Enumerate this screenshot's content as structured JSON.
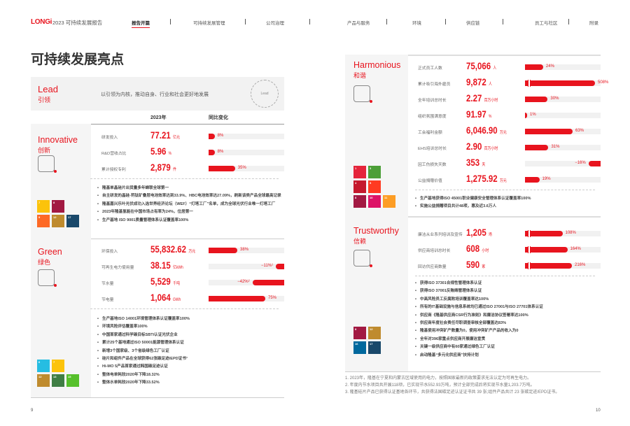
{
  "header": {
    "logo": "LONGi",
    "report_title": "2023 可持续发展报告",
    "nav": [
      {
        "label": "报告开篇",
        "active": true
      },
      {
        "label": "可持续发展管理"
      },
      {
        "label": "公司治理"
      },
      {
        "label": "产品与服务"
      },
      {
        "label": "环境"
      },
      {
        "label": "供应链"
      },
      {
        "label": "员工与社区"
      },
      {
        "label": "附录"
      }
    ]
  },
  "page_title": "可持续发展亮点",
  "lead": {
    "en": "Lead",
    "cn": "引领",
    "desc": "以引领为内核，推动自身、行业和社会更好地发展",
    "badge": "Lead"
  },
  "table_header": {
    "year": "2023年",
    "change": "同比变化"
  },
  "accent": "#e8141e",
  "sections": [
    {
      "id": "innovative",
      "en": "Innovative",
      "cn": "创新",
      "icon": "blocks-icon",
      "sdg": [
        7,
        8,
        9,
        12,
        17
      ],
      "rows": [
        {
          "label": "研发投入",
          "value": "77.21",
          "unit": "亿元",
          "change": "8%",
          "pct": 8
        },
        {
          "label": "R&D营收占比",
          "value": "5.96",
          "unit": "%",
          "change": "8%",
          "pct": 8
        },
        {
          "label": "累计授权专利",
          "value": "2,879",
          "unit": "件",
          "change": "35%",
          "pct": 35
        }
      ],
      "bullets": [
        "隆基单晶硅片出货量多年蝉联全球第一",
        "自主研发的晶硅-钙钛矿叠层电池效率达到33.9%、HBC电池效率达27.09%，刷新该类产品全球最高记录",
        "隆基嘉兴乐叶光伏成功入选世界经济论坛（WEF）“灯塔工厂”名单，成为全球光伏行业唯一灯塔工厂",
        "2023年隆基氢能在中国市场占有率为24%，位居第一",
        "生产基地 ISO 9001质量管理体系认证覆盖率100%"
      ]
    },
    {
      "id": "green",
      "en": "Green",
      "cn": "绿色",
      "icon": "leaf-icon",
      "sdg": [
        6,
        7,
        12,
        13,
        15
      ],
      "rows": [
        {
          "label": "环保投入",
          "value": "55,832.62",
          "unit": "万元",
          "change": "38%",
          "pct": 38
        },
        {
          "label": "可再生电力使用量",
          "value": "38.15",
          "unit": "亿kWh",
          "change": "−11%¹",
          "pct": -11
        },
        {
          "label": "节水量",
          "value": "5,529",
          "unit": "千吨",
          "change": "−42%²",
          "pct": -42
        },
        {
          "label": "节电量",
          "value": "1,064",
          "unit": "GWh",
          "change": "75%",
          "pct": 75
        }
      ],
      "bullets": [
        "生产基地ISO 14001环境管理体系认证覆盖率100%",
        "环境风险评估覆盖率100%",
        "中国首家通过科学碳目标SBTi认证光伏企业",
        "累计25个基地通过ISO 50001能源管理体系认证",
        "新增3个国家级、3个省级绿色工厂认证",
        "硅片和组件产品在全球获得62张碳足迹/EPD证书³",
        "Hi-MO 5产品首家通过韩国碳足迹认证",
        "整体电单耗较2020年下降18.32%",
        "整体水单耗较2020年下降33.52%"
      ]
    },
    {
      "id": "harmonious",
      "en": "Harmonious",
      "cn": "和谐",
      "icon": "people-icon",
      "sdg": [
        1,
        3,
        4,
        5,
        8,
        10,
        11
      ],
      "rows": [
        {
          "label": "正式员工人数",
          "value": "75,066",
          "unit": "人",
          "change": "24%",
          "pct": 24
        },
        {
          "label": "累计吸引海外雇员",
          "value": "9,872",
          "unit": "人",
          "change": "508%",
          "pct": 508
        },
        {
          "label": "全年培训总时长",
          "value": "2.27",
          "unit": "百万小时",
          "change": "30%",
          "pct": 30
        },
        {
          "label": "组织氛围满意度",
          "value": "91.97",
          "unit": "%",
          "change": "1%",
          "pct": 1
        },
        {
          "label": "工会福利金额",
          "value": "6,046.90",
          "unit": "万元",
          "change": "63%",
          "pct": 63
        },
        {
          "label": "EHS培训总时长",
          "value": "2.90",
          "unit": "百万小时",
          "change": "31%",
          "pct": 31
        },
        {
          "label": "因工伤损失天数",
          "value": "353",
          "unit": "天",
          "change": "−16%",
          "pct": -16
        },
        {
          "label": "公益捐赠价值",
          "value": "1,275.92",
          "unit": "万元",
          "change": "19%",
          "pct": 19
        }
      ],
      "bullets": [
        "生产基地获得ISO 45001职业健康安全管理体系认证覆盖率100%",
        "实施公益捐赠项目共计48项，惠及近3.6万人"
      ]
    },
    {
      "id": "trustworthy",
      "en": "Trustworthy",
      "cn": "信赖",
      "icon": "handshake-icon",
      "sdg": [
        8,
        12,
        16,
        17
      ],
      "rows": [
        {
          "label": "廉洁从业系列培训及宣传",
          "value": "1,205",
          "unit": "场",
          "change": "108%",
          "pct": 108
        },
        {
          "label": "供应商培训总时长",
          "value": "608",
          "unit": "小时",
          "change": "164%",
          "pct": 164
        },
        {
          "label": "回访供应商数量",
          "value": "590",
          "unit": "家",
          "change": "216%",
          "pct": 216
        }
      ],
      "bullets": [
        "获得ISO 37301合规性管理体系认证",
        "获得ISO 37001反贿赂管理体系认证",
        "中高风险员工反腐败培训覆盖率达100%",
        "所有的IT基础设施与信息系统均已通过ISO 27001与ISO 27701体系认证",
        "供应商《隆基供应商CSR行为准则》和廉洁协议签署率达100%",
        "供应商年度社会责任尽职调查审核全部覆盖达83%",
        "隆基使用冲突矿产数量为0，使用冲突矿产产品的收入为0",
        "全年对396家重点供应商开展廉洁宣贯",
        "关键一级供应商中有60家通过绿色工厂认证",
        "启动隆基“多元化供应商”扶持计划"
      ]
    }
  ],
  "sdg_colors": {
    "1": "#e5243b",
    "3": "#4c9f38",
    "4": "#c5192d",
    "5": "#ff3a21",
    "6": "#26bde2",
    "7": "#fcc30b",
    "8": "#a21942",
    "9": "#fd6925",
    "10": "#dd1367",
    "11": "#fd9d24",
    "12": "#bf8b2e",
    "13": "#3f7e44",
    "15": "#56c02b",
    "16": "#00689d",
    "17": "#19486a"
  },
  "footnotes": [
    "1. 2023年，隆基在宁夏和内蒙古区域使用的电力，按照国家最新的政策要求无法认定为可再生电力。",
    "2. 年度内节水项目共开展118项，已实现节水552.93万吨，预计全部完成后将实现节水量1,203.7万吨。",
    "3. 隆基硅片产品已获得认证基地各环节，共获得法国碳足迹认证证书共 39 张;组件产品共计 23 张碳足迹/EPD证书。"
  ],
  "page_numbers": {
    "left": "9",
    "right": "10"
  }
}
